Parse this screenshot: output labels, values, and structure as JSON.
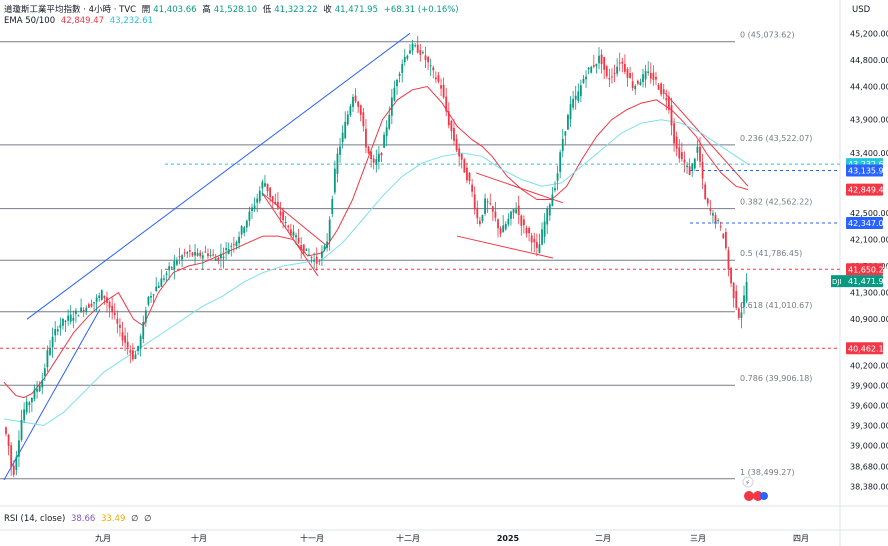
{
  "header": {
    "title": "道瓊斯工業平均指數 · 4小時 · TVC",
    "open_label": "開",
    "open": "41,403.66",
    "high_label": "高",
    "high": "41,528.10",
    "low_label": "低",
    "low": "41,323.22",
    "close_label": "收",
    "close": "41,471.95",
    "change": "+68.31 (+0.16%)",
    "ema_label": "EMA 50/100",
    "ema50": "42,849.47",
    "ema100": "43,232.61"
  },
  "currency": "USD",
  "rsi": {
    "label": "RSI (14, close)",
    "v1": "38.66",
    "v2": "33.49",
    "z1": "∅",
    "z2": "∅"
  },
  "colors": {
    "up": "#089981",
    "down": "#f23645",
    "ema50": "#f23645",
    "ema100": "#7ee0ea",
    "trend": "#2962ff",
    "fib": "#787b86"
  },
  "chart_data": {
    "type": "candlestick",
    "y_axis": {
      "range": [
        38300,
        45250
      ],
      "ticks": [
        "45,200.00",
        "44,800.00",
        "44,400.00",
        "43,900.00",
        "43,400.00",
        "42,500.00",
        "42,100.00",
        "41,700.00",
        "41,300.00",
        "40,900.00",
        "40,200.00",
        "39,900.00",
        "39,600.00",
        "39,300.00",
        "39,000.00",
        "38,680.00",
        "38,380.00"
      ]
    },
    "x_axis": {
      "labels": [
        "九月",
        "十月",
        "十一月",
        "十二月",
        "2025",
        "二月",
        "三月",
        "四月"
      ]
    },
    "fib_levels": [
      {
        "label": "0 (45,073.62)",
        "value": 45073.62
      },
      {
        "label": "0.236 (43,522.07)",
        "value": 43522.07
      },
      {
        "label": "0.382 (42,562.22)",
        "value": 42562.22
      },
      {
        "label": "0.5 (41,786.45)",
        "value": 41786.45
      },
      {
        "label": "0.618 (41,010.67)",
        "value": 41010.67
      },
      {
        "label": "0.786 (39,906.18)",
        "value": 39906.18
      },
      {
        "label": "1 (38,499.27)",
        "value": 38499.27
      }
    ],
    "price_tags": [
      {
        "text": "43,232.61",
        "value": 43232.61,
        "color": "#26c6da",
        "dashed": true
      },
      {
        "text": "43,135.91",
        "value": 43135.91,
        "color": "#2962ff",
        "dashed": true
      },
      {
        "text": "42,849.47",
        "value": 42849.47,
        "color": "#f23645",
        "dashed": false
      },
      {
        "text": "42,347.00",
        "value": 42347.0,
        "color": "#2962ff",
        "dashed": true
      },
      {
        "text": "41,650.22",
        "value": 41650.22,
        "color": "#f23645",
        "dashed": true
      },
      {
        "text": "41,471.95",
        "value": 41471.95,
        "color": "#089981",
        "dashed": false,
        "symbol": "DJI"
      },
      {
        "text": "40,462.14",
        "value": 40462.14,
        "color": "#f23645",
        "dashed": true
      }
    ],
    "series": [
      {
        "name": "EMA 50",
        "points": [
          [
            0,
            39950
          ],
          [
            6,
            39850
          ],
          [
            12,
            39750
          ],
          [
            20,
            39720
          ],
          [
            28,
            39780
          ],
          [
            40,
            40000
          ],
          [
            55,
            40350
          ],
          [
            70,
            40700
          ],
          [
            85,
            40950
          ],
          [
            100,
            41150
          ],
          [
            115,
            41300
          ],
          [
            130,
            40900
          ],
          [
            140,
            40800
          ],
          [
            155,
            41300
          ],
          [
            170,
            41600
          ],
          [
            185,
            41700
          ],
          [
            200,
            41750
          ],
          [
            215,
            41850
          ],
          [
            230,
            41950
          ],
          [
            245,
            42050
          ],
          [
            260,
            42150
          ],
          [
            275,
            42150
          ],
          [
            290,
            42100
          ],
          [
            305,
            41850
          ],
          [
            320,
            41900
          ],
          [
            335,
            42250
          ],
          [
            350,
            42700
          ],
          [
            365,
            43300
          ],
          [
            380,
            43900
          ],
          [
            395,
            44200
          ],
          [
            410,
            44350
          ],
          [
            425,
            44400
          ],
          [
            440,
            44150
          ],
          [
            455,
            43800
          ],
          [
            470,
            43600
          ],
          [
            480,
            43500
          ],
          [
            490,
            43350
          ],
          [
            505,
            43050
          ],
          [
            520,
            42850
          ],
          [
            535,
            42700
          ],
          [
            550,
            42700
          ],
          [
            565,
            42900
          ],
          [
            580,
            43300
          ],
          [
            595,
            43650
          ],
          [
            610,
            43900
          ],
          [
            625,
            44050
          ],
          [
            640,
            44150
          ],
          [
            655,
            44200
          ],
          [
            670,
            44050
          ],
          [
            680,
            43900
          ],
          [
            695,
            43650
          ],
          [
            705,
            43400
          ],
          [
            720,
            43100
          ],
          [
            735,
            42900
          ],
          [
            747,
            42849
          ]
        ]
      },
      {
        "name": "EMA 100",
        "points": [
          [
            0,
            39400
          ],
          [
            20,
            39350
          ],
          [
            40,
            39300
          ],
          [
            60,
            39500
          ],
          [
            80,
            39800
          ],
          [
            100,
            40100
          ],
          [
            120,
            40300
          ],
          [
            140,
            40500
          ],
          [
            160,
            40700
          ],
          [
            180,
            40900
          ],
          [
            200,
            41100
          ],
          [
            220,
            41250
          ],
          [
            240,
            41450
          ],
          [
            260,
            41600
          ],
          [
            280,
            41700
          ],
          [
            300,
            41750
          ],
          [
            320,
            41800
          ],
          [
            340,
            42050
          ],
          [
            360,
            42400
          ],
          [
            380,
            42750
          ],
          [
            400,
            43050
          ],
          [
            420,
            43250
          ],
          [
            440,
            43350
          ],
          [
            460,
            43400
          ],
          [
            480,
            43350
          ],
          [
            500,
            43150
          ],
          [
            520,
            43000
          ],
          [
            540,
            42900
          ],
          [
            560,
            42950
          ],
          [
            580,
            43200
          ],
          [
            600,
            43450
          ],
          [
            620,
            43700
          ],
          [
            640,
            43850
          ],
          [
            660,
            43900
          ],
          [
            680,
            43850
          ],
          [
            700,
            43700
          ],
          [
            720,
            43500
          ],
          [
            740,
            43300
          ],
          [
            747,
            43232
          ]
        ]
      },
      {
        "name": "DJI",
        "points": [
          [
            0,
            39300
          ],
          [
            5,
            39100
          ],
          [
            10,
            38500
          ],
          [
            15,
            39000
          ],
          [
            20,
            39500
          ],
          [
            30,
            39750
          ],
          [
            40,
            40000
          ],
          [
            45,
            40400
          ],
          [
            55,
            40800
          ],
          [
            65,
            40900
          ],
          [
            75,
            41000
          ],
          [
            85,
            41100
          ],
          [
            95,
            41200
          ],
          [
            100,
            41300
          ],
          [
            110,
            41000
          ],
          [
            118,
            40700
          ],
          [
            125,
            40500
          ],
          [
            132,
            40300
          ],
          [
            140,
            40700
          ],
          [
            145,
            41200
          ],
          [
            155,
            41400
          ],
          [
            165,
            41600
          ],
          [
            175,
            41800
          ],
          [
            185,
            41900
          ],
          [
            195,
            41850
          ],
          [
            205,
            41900
          ],
          [
            215,
            41800
          ],
          [
            225,
            41950
          ],
          [
            235,
            42100
          ],
          [
            245,
            42400
          ],
          [
            255,
            42700
          ],
          [
            262,
            43000
          ],
          [
            270,
            42700
          ],
          [
            278,
            42500
          ],
          [
            285,
            42300
          ],
          [
            295,
            42100
          ],
          [
            305,
            41900
          ],
          [
            315,
            41750
          ],
          [
            325,
            42000
          ],
          [
            335,
            43300
          ],
          [
            345,
            43900
          ],
          [
            352,
            44300
          ],
          [
            358,
            44100
          ],
          [
            365,
            43500
          ],
          [
            372,
            43200
          ],
          [
            380,
            43400
          ],
          [
            388,
            44000
          ],
          [
            395,
            44500
          ],
          [
            402,
            44800
          ],
          [
            410,
            45000
          ],
          [
            418,
            44950
          ],
          [
            425,
            44800
          ],
          [
            432,
            44600
          ],
          [
            440,
            44400
          ],
          [
            447,
            43900
          ],
          [
            455,
            43500
          ],
          [
            462,
            43200
          ],
          [
            470,
            42900
          ],
          [
            478,
            42300
          ],
          [
            485,
            42700
          ],
          [
            492,
            42500
          ],
          [
            500,
            42200
          ],
          [
            508,
            42400
          ],
          [
            515,
            42600
          ],
          [
            522,
            42300
          ],
          [
            530,
            42150
          ],
          [
            537,
            41900
          ],
          [
            543,
            42300
          ],
          [
            550,
            42700
          ],
          [
            556,
            43000
          ],
          [
            562,
            43600
          ],
          [
            570,
            44100
          ],
          [
            578,
            44300
          ],
          [
            585,
            44600
          ],
          [
            592,
            44700
          ],
          [
            600,
            44850
          ],
          [
            607,
            44500
          ],
          [
            613,
            44600
          ],
          [
            620,
            44800
          ],
          [
            627,
            44600
          ],
          [
            633,
            44400
          ],
          [
            640,
            44500
          ],
          [
            647,
            44600
          ],
          [
            655,
            44500
          ],
          [
            662,
            44300
          ],
          [
            668,
            44200
          ],
          [
            675,
            43500
          ],
          [
            682,
            43300
          ],
          [
            690,
            43100
          ],
          [
            698,
            43500
          ],
          [
            705,
            42700
          ],
          [
            711,
            42500
          ],
          [
            718,
            42350
          ],
          [
            725,
            42100
          ],
          [
            730,
            41500
          ],
          [
            735,
            41200
          ],
          [
            740,
            40900
          ],
          [
            744,
            41200
          ],
          [
            747,
            41472
          ]
        ]
      }
    ]
  }
}
